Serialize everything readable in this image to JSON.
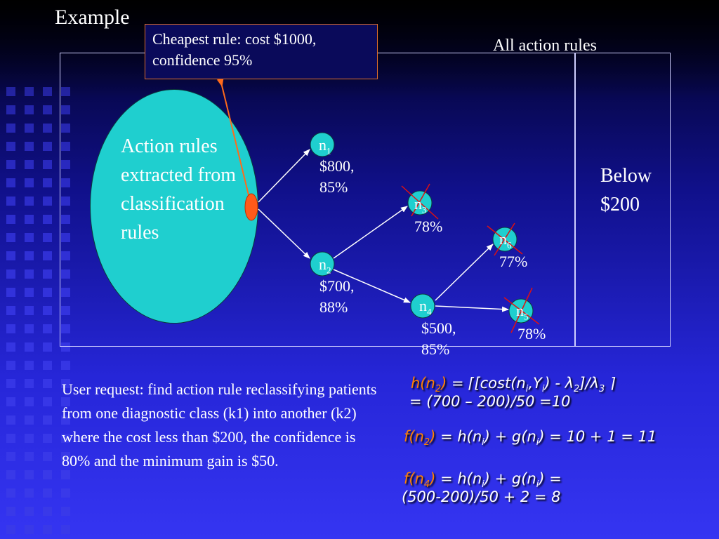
{
  "slide": {
    "title": "Example",
    "callout": "Cheapest rule: cost $1000, confidence 95%",
    "all_rules_label": "All action rules",
    "ellipse_text": "Action rules extracted from classification rules",
    "below_label_1": "Below",
    "below_label_2": "$200"
  },
  "nodes": {
    "n1": {
      "name": "n",
      "sub": "1",
      "cost": "$800,",
      "conf": "85%"
    },
    "n2": {
      "name": "n",
      "sub": "2",
      "cost": "$700,",
      "conf": "88%"
    },
    "n3": {
      "name": "n",
      "sub": "3",
      "conf": "78%"
    },
    "n4": {
      "name": "n",
      "sub": "4",
      "cost": "$500,",
      "conf": "85%"
    },
    "n5": {
      "name": "n",
      "sub": "5",
      "conf": "78%"
    },
    "n6": {
      "name": "n",
      "sub": "6",
      "conf": "77%"
    }
  },
  "request_text": "User request: find action rule reclassifying patients from one diagnostic class (k1) into another (k2) where the cost less than $200, the confidence is 80% and the minimum gain is $50.",
  "formulas": {
    "h_lhs": "h(n",
    "h_lhs_sub": "2",
    "h_rhs_a": " = ⌈[cost(n",
    "h_rhs_sub_i": "i",
    "h_rhs_b": ",Y",
    "h_rhs_sub_i2": "i",
    "h_rhs_c": ") - λ",
    "h_rhs_sub_2": "2",
    "h_rhs_d": "]/λ",
    "h_rhs_sub_3": "3",
    "h_rhs_e": " ⌉",
    "h_line2": "= (700 – 200)/50 =10",
    "f2_lhs": "f(n",
    "f2_lhs_sub": "2",
    "f2_rhs": " = h(n",
    "f2_sub_a": "i",
    "f2_rhs_b": ") + g(n",
    "f2_sub_b": "i",
    "f2_rhs_c": ") = 10 + 1 = 11",
    "f4_lhs": "f(n",
    "f4_lhs_sub": "4",
    "f4_rhs": " = h(n",
    "f4_sub_a": "i",
    "f4_rhs_b": ") + g(n",
    "f4_sub_b": "i",
    "f4_rhs_c": ") =",
    "f4_line2": "(500-200)/50 + 2 = 8"
  },
  "colors": {
    "background": "#2626d8",
    "ellipse": "#1fcfcf",
    "node_fill": "#1fcfcf",
    "start_node": "#ff5a1a",
    "callout_border": "#e0702a",
    "strike": "#e01010",
    "formula_highlight": "#ff8000"
  }
}
